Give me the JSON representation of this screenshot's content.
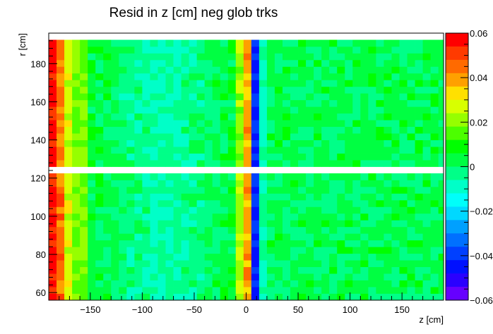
{
  "chart_data": {
    "type": "heatmap",
    "title": "Resid in z [cm] neg glob trks",
    "xlabel": "z [cm]",
    "ylabel": "r [cm]",
    "xlim": [
      -190,
      190
    ],
    "ylim": [
      56,
      196
    ],
    "x_ticks": [
      "−150",
      "−100",
      "−50",
      "0",
      "50",
      "100",
      "150"
    ],
    "y_ticks": [
      "60",
      "80",
      "100",
      "120",
      "140",
      "160",
      "180"
    ],
    "z_range": [
      -0.06,
      0.06
    ],
    "z_ticks": [
      "0.06",
      "0.04",
      "0.02",
      "0",
      "−0.02",
      "−0.04",
      "−0.06"
    ],
    "colorbar_palette": [
      "#ff0000",
      "#ff3a00",
      "#ff6a00",
      "#ffa000",
      "#ffe000",
      "#d8ff00",
      "#96ff00",
      "#4cff00",
      "#00ff00",
      "#00ff42",
      "#00ff88",
      "#00ffc8",
      "#00fffa",
      "#00d8ff",
      "#00a0ff",
      "#0070ff",
      "#0040ff",
      "#0010ff",
      "#2a00ff",
      "#6600ff"
    ],
    "grid": false,
    "legend": "colorbar-right"
  }
}
